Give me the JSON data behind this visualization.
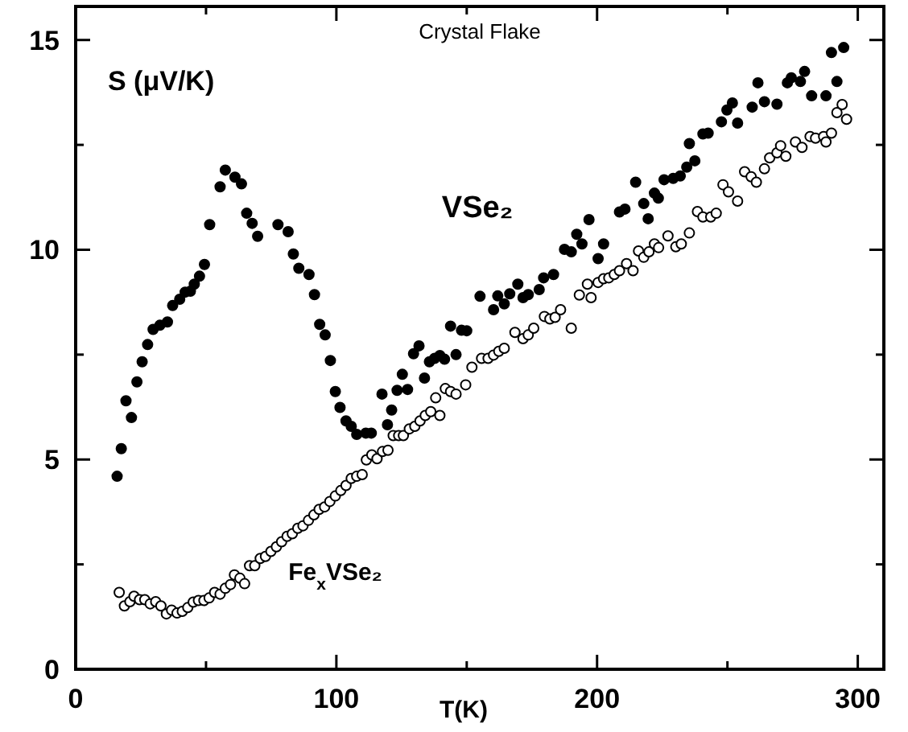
{
  "chart_data": {
    "type": "scatter",
    "title": "Crystal Flake",
    "xlabel": "T(K)",
    "ylabel": "S (μV/K)",
    "xlim": [
      0,
      310
    ],
    "ylim": [
      0,
      15.8
    ],
    "xticks": [
      0,
      {
        "value": 50,
        "label": null
      },
      100,
      {
        "value": 150,
        "label": null
      },
      200,
      {
        "value": 250,
        "label": null
      },
      300
    ],
    "yticks": [
      0,
      {
        "value": 2.5,
        "label": null
      },
      5,
      {
        "value": 7.5,
        "label": null
      },
      10,
      {
        "value": 12.5,
        "label": null
      },
      15
    ],
    "grid": false,
    "series": [
      {
        "name": "VSe₂",
        "color": "#000000",
        "marker": "circle",
        "x": [
          15.9,
          17.5,
          19.3,
          21.4,
          23.5,
          25.5,
          27.6,
          29.7,
          32.3,
          35.2,
          37.2,
          39.9,
          42,
          44,
          45.5,
          47.5,
          49.4,
          51.4,
          55.4,
          57.4,
          61.1,
          63.6,
          65.6,
          67.7,
          69.8,
          77.6,
          81.5,
          83.5,
          85.6,
          89.5,
          91.6,
          93.6,
          95.7,
          97.7,
          99.6,
          101.4,
          103.7,
          105.7,
          107.8,
          111.3,
          113.4,
          117.5,
          119.6,
          121.2,
          123.3,
          125.3,
          127.3,
          129.6,
          131.7,
          133.8,
          135.7,
          137.7,
          139.7,
          141.5,
          143.8,
          145.9,
          148,
          150,
          155.1,
          160.3,
          161.9,
          164.4,
          166.5,
          169.6,
          171.6,
          173.6,
          177.8,
          179.5,
          183.3,
          187.5,
          190.1,
          192.2,
          194.2,
          196.9,
          200.4,
          202.5,
          208.6,
          210.7,
          214.8,
          217.9,
          219.6,
          222,
          223.5,
          225.7,
          229.2,
          231.9,
          234.4,
          235.4,
          237.5,
          240.6,
          242.6,
          247.7,
          249.8,
          251.9,
          253.9,
          259.5,
          261.7,
          264.2,
          269,
          273,
          274.5,
          278,
          279.6,
          282.3,
          287.8,
          289.9,
          292,
          294.6
        ],
        "values": [
          4.6,
          5.26,
          6.4,
          6,
          6.85,
          7.33,
          7.74,
          8.1,
          8.2,
          8.28,
          8.67,
          8.82,
          8.99,
          9.01,
          9.18,
          9.37,
          9.65,
          10.6,
          11.5,
          11.9,
          11.73,
          11.57,
          10.87,
          10.63,
          10.32,
          10.6,
          10.43,
          9.9,
          9.56,
          9.41,
          8.93,
          8.22,
          7.97,
          7.36,
          6.62,
          6.24,
          5.92,
          5.79,
          5.6,
          5.63,
          5.63,
          6.56,
          5.83,
          6.18,
          6.65,
          7.03,
          6.67,
          7.52,
          7.71,
          6.94,
          7.33,
          7.41,
          7.48,
          7.39,
          8.18,
          7.5,
          8.08,
          8.07,
          8.89,
          8.57,
          8.9,
          8.71,
          8.95,
          9.18,
          8.86,
          8.93,
          9.05,
          9.33,
          9.41,
          10.01,
          9.95,
          10.37,
          10.14,
          10.72,
          9.79,
          10.14,
          10.9,
          10.97,
          11.61,
          11.1,
          10.74,
          11.35,
          11.23,
          11.67,
          11.7,
          11.76,
          11.97,
          12.53,
          12.12,
          12.76,
          12.78,
          13.05,
          13.33,
          13.5,
          13.02,
          13.4,
          13.98,
          13.53,
          13.47,
          13.98,
          14.1,
          14.01,
          14.25,
          13.67,
          13.67,
          14.7,
          14.01,
          14.82
        ]
      },
      {
        "name": "Fe$_{x}$VSe₂",
        "color": "#000000",
        "marker": "circle-open",
        "x": [
          16.7,
          18.7,
          20.8,
          22.4,
          24.5,
          26.5,
          28.6,
          30.7,
          32.7,
          34.8,
          36.8,
          38.9,
          40.9,
          43,
          45.1,
          47.1,
          49.2,
          51.2,
          53.3,
          55.4,
          57.4,
          59.4,
          60.9,
          63,
          64.8,
          66.7,
          68.7,
          70.8,
          72.8,
          74.9,
          77,
          79,
          81.1,
          83.1,
          85.2,
          87.2,
          89.3,
          91.4,
          93.4,
          95.5,
          97.5,
          99.6,
          101.7,
          103.7,
          105.7,
          107.8,
          109.9,
          111.5,
          113.6,
          115.6,
          117.7,
          119.8,
          121.8,
          123.9,
          125.7,
          128,
          130.1,
          132.1,
          134.1,
          136.2,
          138.1,
          139.7,
          141.8,
          143.8,
          145.9,
          149.6,
          152,
          155.7,
          158.2,
          160.3,
          162.3,
          164.4,
          168.5,
          171.6,
          173.6,
          175.7,
          179.8,
          181.9,
          183.9,
          186,
          190.1,
          193.2,
          196.3,
          197.7,
          200.4,
          202.5,
          204.5,
          206.6,
          208.6,
          211.3,
          213.8,
          215.9,
          217.9,
          219.9,
          222,
          223.6,
          227.2,
          230.2,
          232.3,
          235.4,
          238.5,
          240.6,
          243.6,
          245.7,
          248.3,
          250.4,
          253.9,
          256.6,
          259.1,
          261.1,
          264.2,
          266.2,
          269,
          270.4,
          272.4,
          276.1,
          278.6,
          281.7,
          283.8,
          286.9,
          287.8,
          289.9,
          292,
          294,
          295.7
        ],
        "values": [
          1.83,
          1.51,
          1.61,
          1.74,
          1.66,
          1.66,
          1.56,
          1.61,
          1.51,
          1.32,
          1.41,
          1.34,
          1.38,
          1.47,
          1.6,
          1.64,
          1.64,
          1.7,
          1.83,
          1.79,
          1.93,
          2.02,
          2.25,
          2.17,
          2.04,
          2.47,
          2.47,
          2.64,
          2.69,
          2.81,
          2.92,
          3.04,
          3.17,
          3.23,
          3.36,
          3.42,
          3.55,
          3.68,
          3.81,
          3.87,
          4,
          4.13,
          4.26,
          4.38,
          4.55,
          4.6,
          4.64,
          4.99,
          5.11,
          5.02,
          5.19,
          5.22,
          5.57,
          5.57,
          5.57,
          5.73,
          5.79,
          5.92,
          6.05,
          6.14,
          6.47,
          6.05,
          6.69,
          6.62,
          6.56,
          6.78,
          7.2,
          7.41,
          7.41,
          7.49,
          7.58,
          7.65,
          8.03,
          7.88,
          7.97,
          8.13,
          8.41,
          8.35,
          8.39,
          8.57,
          8.13,
          8.92,
          9.18,
          8.86,
          9.22,
          9.31,
          9.33,
          9.41,
          9.5,
          9.67,
          9.5,
          9.97,
          9.82,
          9.95,
          10.14,
          10.05,
          10.33,
          10.07,
          10.14,
          10.4,
          10.91,
          10.78,
          10.78,
          10.87,
          11.55,
          11.38,
          11.16,
          11.86,
          11.74,
          11.61,
          11.93,
          12.19,
          12.31,
          12.48,
          12.23,
          12.57,
          12.44,
          12.7,
          12.66,
          12.7,
          12.57,
          12.78,
          13.27,
          13.46,
          13.11
        ]
      }
    ]
  }
}
